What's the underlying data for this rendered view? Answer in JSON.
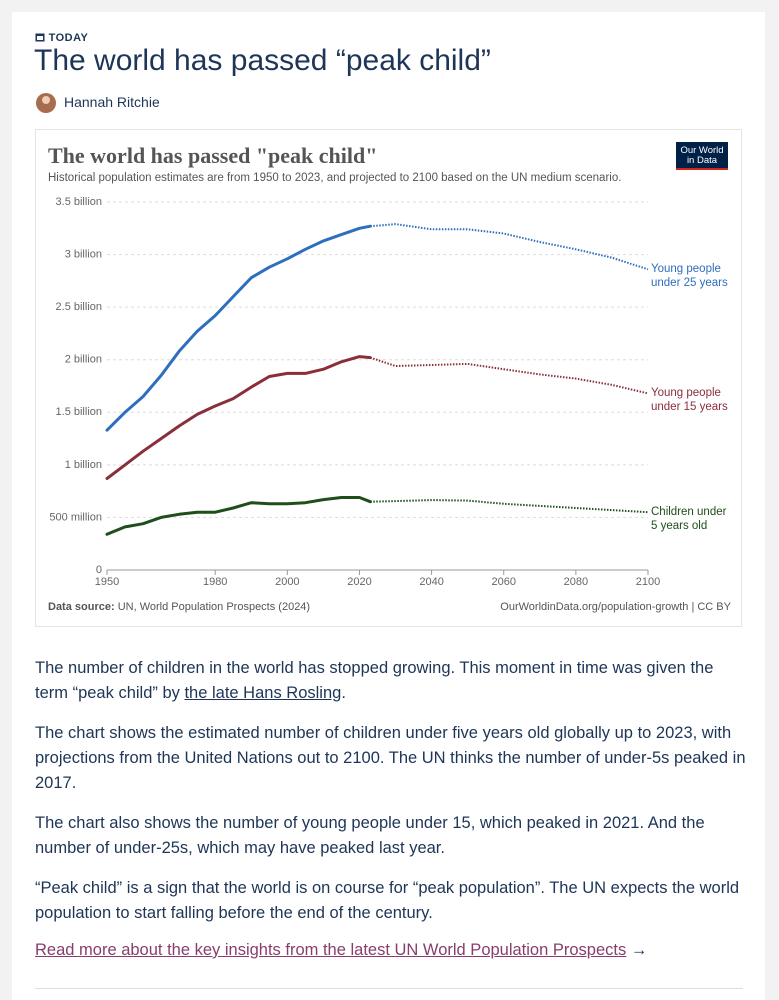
{
  "header": {
    "tag": "TODAY",
    "title": "The world has passed “peak child”",
    "author": "Hannah Ritchie"
  },
  "chart_data": {
    "type": "line",
    "title": "The world has passed \"peak child\"",
    "subtitle": "Historical population estimates are from 1950 to 2023, and projected to 2100 based on the UN medium scenario.",
    "logo": [
      "Our World",
      "in Data"
    ],
    "source_label": "Data source:",
    "source": "UN, World Population Prospects (2024)",
    "credit": "OurWorldinData.org/population-growth | CC BY",
    "x": [
      1950,
      1955,
      1960,
      1965,
      1970,
      1975,
      1980,
      1985,
      1990,
      1995,
      2000,
      2005,
      2010,
      2015,
      2020,
      2023,
      2030,
      2040,
      2050,
      2060,
      2070,
      2080,
      2090,
      2100
    ],
    "series": [
      {
        "name": "Young people under 25 years",
        "color": "#2d6ebd",
        "values": [
          1330000000,
          1500000000,
          1650000000,
          1850000000,
          2080000000,
          2270000000,
          2420000000,
          2600000000,
          2780000000,
          2880000000,
          2960000000,
          3050000000,
          3130000000,
          3190000000,
          3250000000,
          3270000000,
          null,
          null,
          null,
          null,
          null,
          null,
          null,
          null
        ],
        "projected_values": [
          null,
          null,
          null,
          null,
          null,
          null,
          null,
          null,
          null,
          null,
          null,
          null,
          null,
          null,
          null,
          3270000000,
          3290000000,
          3240000000,
          3240000000,
          3200000000,
          3120000000,
          3050000000,
          2970000000,
          2860000000
        ]
      },
      {
        "name": "Young people under 15 years",
        "color": "#8b2e3b",
        "values": [
          870000000,
          1000000000,
          1130000000,
          1250000000,
          1370000000,
          1480000000,
          1560000000,
          1630000000,
          1740000000,
          1840000000,
          1870000000,
          1870000000,
          1910000000,
          1980000000,
          2030000000,
          2020000000,
          null,
          null,
          null,
          null,
          null,
          null,
          null,
          null
        ],
        "projected_values": [
          null,
          null,
          null,
          null,
          null,
          null,
          null,
          null,
          null,
          null,
          null,
          null,
          null,
          null,
          null,
          2020000000,
          1940000000,
          1950000000,
          1960000000,
          1910000000,
          1860000000,
          1820000000,
          1760000000,
          1680000000
        ]
      },
      {
        "name": "Children under 5 years old",
        "color": "#1e4f1b",
        "values": [
          340000000,
          410000000,
          440000000,
          500000000,
          530000000,
          550000000,
          550000000,
          590000000,
          640000000,
          630000000,
          630000000,
          640000000,
          670000000,
          690000000,
          690000000,
          650000000,
          null,
          null,
          null,
          null,
          null,
          null,
          null,
          null
        ],
        "projected_values": [
          null,
          null,
          null,
          null,
          null,
          null,
          null,
          null,
          null,
          null,
          null,
          null,
          null,
          null,
          null,
          650000000,
          655000000,
          665000000,
          660000000,
          630000000,
          610000000,
          590000000,
          570000000,
          550000000
        ]
      }
    ],
    "xlim": [
      1950,
      2100
    ],
    "xticks": [
      1950,
      1980,
      2000,
      2020,
      2040,
      2060,
      2080,
      2100
    ],
    "ylim": [
      0,
      3500000000
    ],
    "yticks": [
      0,
      {
        "value": 500000000,
        "label": "500 million"
      },
      {
        "value": 1000000000,
        "label": "1 billion"
      },
      {
        "value": 1500000000,
        "label": "1.5 billion"
      },
      {
        "value": 2000000000,
        "label": "2 billion"
      },
      {
        "value": 2500000000,
        "label": "2.5 billion"
      },
      {
        "value": 3000000000,
        "label": "3 billion"
      },
      {
        "value": 3500000000,
        "label": "3.5 billion"
      }
    ],
    "grid": true
  },
  "body": {
    "paragraph_1": {
      "before": "The number of children in the world has stopped growing. This moment in time was given the term “peak child” by ",
      "link": "the late Hans Rosling",
      "after": "."
    },
    "paragraphs": [
      "The chart shows the estimated number of children under five years old globally up to 2023, with projections from the United Nations out to 2100. The UN thinks the number of under-5s peaked in 2017.",
      "The chart also shows the number of young people under 15, which peaked in 2021. And the number of under-25s, which may have peaked last year.",
      "“Peak child” is a sign that the world is on course for “peak population”. The UN expects the world population to start falling before the end of the century."
    ],
    "read_more": "Read more about the key insights from the latest UN World Population Prospects",
    "arrow": "→"
  }
}
